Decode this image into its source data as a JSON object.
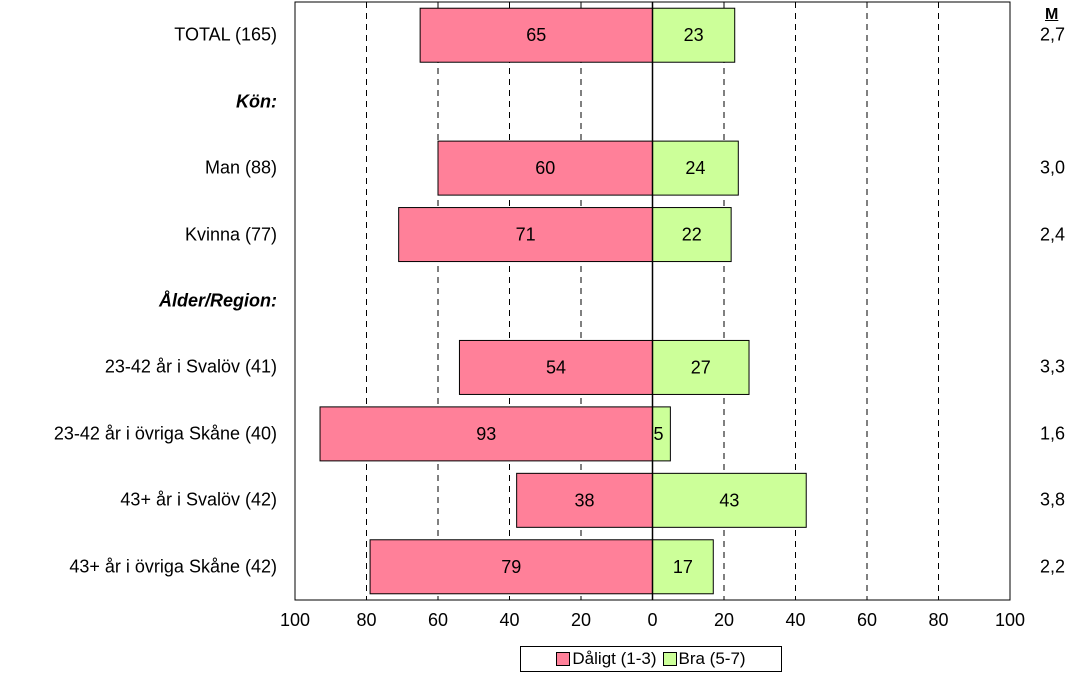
{
  "chart_data": {
    "type": "bar",
    "orientation": "diverging-horizontal",
    "m_header": "M",
    "rows": [
      {
        "label": "TOTAL (165)",
        "header": false,
        "daligt": 65,
        "bra": 23,
        "m": "2,7"
      },
      {
        "label": "Kön:",
        "header": true
      },
      {
        "label": "Man (88)",
        "header": false,
        "daligt": 60,
        "bra": 24,
        "m": "3,0"
      },
      {
        "label": "Kvinna (77)",
        "header": false,
        "daligt": 71,
        "bra": 22,
        "m": "2,4"
      },
      {
        "label": "Ålder/Region:",
        "header": true
      },
      {
        "label": "23-42 år i Svalöv (41)",
        "header": false,
        "daligt": 54,
        "bra": 27,
        "m": "3,3"
      },
      {
        "label": "23-42 år i övriga Skåne (40)",
        "header": false,
        "daligt": 93,
        "bra": 5,
        "m": "1,6"
      },
      {
        "label": "43+ år i Svalöv (42)",
        "header": false,
        "daligt": 38,
        "bra": 43,
        "m": "3,8"
      },
      {
        "label": "43+ år i övriga Skåne (42)",
        "header": false,
        "daligt": 79,
        "bra": 17,
        "m": "2,2"
      }
    ],
    "x_ticks": [
      "100",
      "80",
      "60",
      "40",
      "20",
      "0",
      "20",
      "40",
      "60",
      "80",
      "100"
    ],
    "xlim": [
      -100,
      100
    ],
    "series": [
      {
        "name": "Dåligt (1-3)",
        "color": "#ff8099"
      },
      {
        "name": "Bra (5-7)",
        "color": "#ccff99"
      }
    ],
    "grid": "dashed vertical",
    "legend_position": "bottom"
  }
}
